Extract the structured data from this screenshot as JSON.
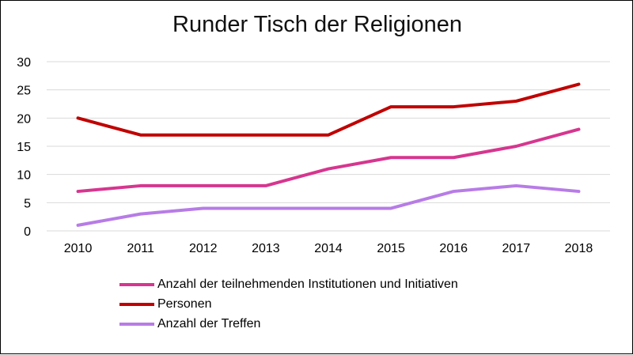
{
  "chart_data": {
    "type": "line",
    "title": "Runder Tisch der Religionen",
    "categories": [
      "2010",
      "2011",
      "2012",
      "2013",
      "2014",
      "2015",
      "2016",
      "2017",
      "2018"
    ],
    "ylim": [
      0,
      30
    ],
    "yticks": [
      "0",
      "5",
      "10",
      "15",
      "20",
      "25",
      "30"
    ],
    "grid": true,
    "legend_position": "bottom",
    "series": [
      {
        "name": "Anzahl der teilnehmenden Institutionen und Initiativen",
        "color": "#d6368f",
        "values": [
          7,
          8,
          8,
          8,
          11,
          13,
          13,
          15,
          18
        ]
      },
      {
        "name": "Personen",
        "color": "#c00000",
        "values": [
          20,
          17,
          17,
          17,
          17,
          22,
          22,
          23,
          26
        ]
      },
      {
        "name": "Anzahl der Treffen",
        "color": "#b77ce6",
        "values": [
          1,
          3,
          4,
          4,
          4,
          4,
          7,
          8,
          7
        ]
      }
    ]
  }
}
